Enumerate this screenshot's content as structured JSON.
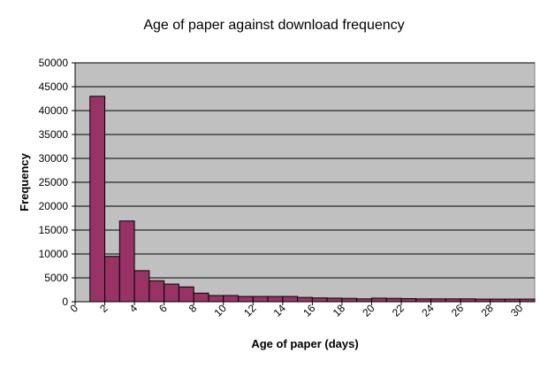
{
  "chart_data": {
    "type": "bar",
    "title": "Age of paper against download frequency",
    "xlabel": "Age of paper (days)",
    "ylabel": "Frequency",
    "ylim": [
      0,
      50000
    ],
    "xlim": [
      0,
      31
    ],
    "grid": true,
    "legend": "none",
    "y_ticks": [
      0,
      5000,
      10000,
      15000,
      20000,
      25000,
      30000,
      35000,
      40000,
      45000,
      50000
    ],
    "x_ticks": [
      0,
      2,
      4,
      6,
      8,
      10,
      12,
      14,
      16,
      18,
      20,
      22,
      24,
      26,
      28,
      30
    ],
    "colors": {
      "bar_fill": "#993366",
      "bar_stroke": "#000000",
      "plot_background": "#c0c0c0",
      "gridline": "#000000"
    },
    "bin_width": 1,
    "series": [
      {
        "bin_start": [
          1,
          2,
          3,
          4,
          5,
          6,
          7,
          8,
          9,
          10,
          11,
          12,
          13,
          14,
          15,
          16,
          17,
          18,
          19,
          20,
          21,
          22,
          23,
          24,
          25,
          26,
          27,
          28,
          29,
          30
        ],
        "values": [
          43000,
          9500,
          16900,
          6500,
          4400,
          3700,
          3100,
          1800,
          1300,
          1300,
          1100,
          1100,
          1100,
          1100,
          900,
          800,
          750,
          700,
          600,
          750,
          700,
          650,
          600,
          600,
          600,
          600,
          550,
          550,
          550,
          550
        ]
      }
    ]
  }
}
